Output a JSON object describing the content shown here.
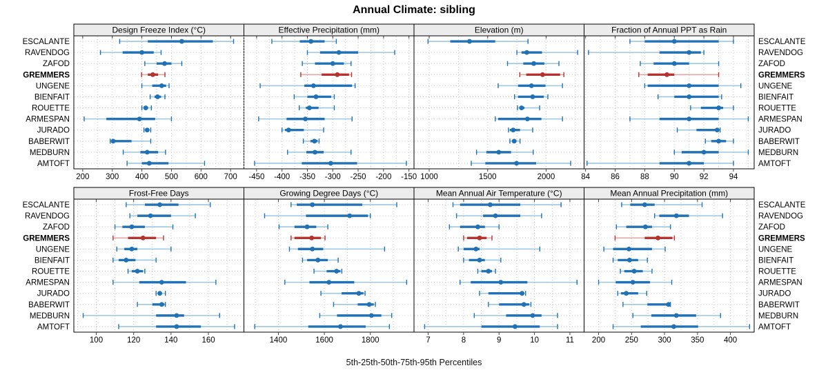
{
  "title": "Annual Climate: sibling",
  "caption": "5th-25th-50th-75th-95th Percentiles",
  "colors": {
    "blue_dark": "#2171B5",
    "blue_light": "#9CC7E2",
    "red_dark": "#B5332E",
    "red_light": "#E3A8A2",
    "grid": "#C9C9C9",
    "strip_bg": "#ECECEC",
    "panel_border": "#000000",
    "text": "#000000"
  },
  "chart_data": {
    "type": "scatter",
    "subtype": "percentile-interval-dotplot (lattice, 2x4 panels)",
    "percentile_levels": [
      5,
      25,
      50,
      75,
      95
    ],
    "legend_position": "none",
    "grid": "dotted",
    "sites": [
      "ESCALANTE",
      "RAVENDOG",
      "ZAFOD",
      "GREMMERS",
      "UNGENE",
      "BIENFAIT",
      "ROUETTE",
      "ARMESPAN",
      "JURADO",
      "BABERWIT",
      "MEDBURN",
      "AMTOFT"
    ],
    "highlighted_site": "GREMMERS",
    "layout": {
      "rows": 2,
      "cols": 4
    },
    "panels": [
      {
        "title": "Design Freeze Index (°C)",
        "xlim": [
          170,
          745
        ],
        "ticks": [
          200,
          300,
          400,
          500,
          600,
          700
        ],
        "minor_step": 50,
        "values": [
          [
            325,
            420,
            535,
            640,
            710
          ],
          [
            260,
            335,
            400,
            440,
            465
          ],
          [
            410,
            450,
            477,
            500,
            535
          ],
          [
            399,
            420,
            437,
            455,
            478
          ],
          [
            400,
            435,
            467,
            482,
            492
          ],
          [
            428,
            443,
            453,
            465,
            478
          ],
          [
            400,
            407,
            413,
            421,
            432
          ],
          [
            205,
            280,
            392,
            445,
            500
          ],
          [
            407,
            412,
            418,
            424,
            430
          ],
          [
            293,
            298,
            303,
            365,
            430
          ],
          [
            337,
            395,
            418,
            455,
            480
          ],
          [
            350,
            400,
            425,
            490,
            612
          ]
        ]
      },
      {
        "title": "Effective Precipitation (mm)",
        "xlim": [
          -475,
          -140
        ],
        "ticks": [
          -450,
          -400,
          -350,
          -300,
          -250,
          -200,
          -150
        ],
        "minor_step": 25,
        "values": [
          [
            -420,
            -365,
            -343,
            -316,
            -293
          ],
          [
            -350,
            -325,
            -288,
            -250,
            -178
          ],
          [
            -360,
            -335,
            -300,
            -278,
            -264
          ],
          [
            -363,
            -322,
            -291,
            -268,
            -263
          ],
          [
            -443,
            -356,
            -338,
            -262,
            -256
          ],
          [
            -376,
            -350,
            -333,
            -303,
            -297
          ],
          [
            -366,
            -353,
            -346,
            -328,
            -297
          ],
          [
            -446,
            -391,
            -354,
            -316,
            -262
          ],
          [
            -400,
            -394,
            -387,
            -357,
            -318
          ],
          [
            -358,
            -344,
            -336,
            -330,
            -327
          ],
          [
            -389,
            -352,
            -335,
            -318,
            -264
          ],
          [
            -454,
            -361,
            -304,
            -252,
            -155
          ]
        ]
      },
      {
        "title": "Elevation (m)",
        "xlim": [
          870,
          2325
        ],
        "ticks": [
          1000,
          1500,
          2000
        ],
        "minor_step": 250,
        "values": [
          [
            990,
            1180,
            1345,
            1565,
            1845
          ],
          [
            1750,
            1790,
            1835,
            1965,
            2270
          ],
          [
            1670,
            1805,
            1895,
            1985,
            2110
          ],
          [
            1775,
            1830,
            1970,
            2120,
            2152
          ],
          [
            1590,
            1760,
            1875,
            1995,
            2140
          ],
          [
            1730,
            1760,
            1885,
            1980,
            2015
          ],
          [
            1755,
            1770,
            1790,
            1815,
            1945
          ],
          [
            1565,
            1590,
            1840,
            1960,
            2140
          ],
          [
            1678,
            1690,
            1718,
            1777,
            1885
          ],
          [
            1690,
            1708,
            1727,
            1747,
            1777
          ],
          [
            1405,
            1490,
            1595,
            1700,
            1890
          ],
          [
            1360,
            1480,
            1747,
            1915,
            2210
          ]
        ]
      },
      {
        "title": "Fraction of Annual PPT as Rain",
        "xlim": [
          83.9,
          95.4
        ],
        "ticks": [
          84,
          86,
          88,
          90,
          92,
          94
        ],
        "minor_step": 1,
        "values": [
          [
            87,
            88,
            90,
            93,
            94
          ],
          [
            84.2,
            89,
            91,
            91.8,
            92
          ],
          [
            87.7,
            88.6,
            90,
            91,
            93
          ],
          [
            87.6,
            88.2,
            89.5,
            90,
            93
          ],
          [
            88,
            88.2,
            91,
            93,
            94.5
          ],
          [
            88.9,
            90,
            91,
            93,
            93.2
          ],
          [
            91.1,
            91.8,
            93,
            93.3,
            94
          ],
          [
            87,
            89,
            91,
            93,
            95
          ],
          [
            90.2,
            91.5,
            92.9,
            93,
            93.1
          ],
          [
            92.1,
            92.5,
            93,
            93.5,
            94
          ],
          [
            90,
            90.5,
            92,
            93,
            95
          ],
          [
            84.1,
            89,
            91,
            92,
            94
          ]
        ]
      },
      {
        "title": "Frost-Free Days",
        "xlim": [
          88,
          179
        ],
        "ticks": [
          100,
          120,
          140,
          160
        ],
        "minor_step": 10,
        "values": [
          [
            116,
            126,
            134,
            144,
            161
          ],
          [
            118,
            122,
            129,
            140,
            153
          ],
          [
            110,
            114,
            119,
            126,
            141
          ],
          [
            109,
            117,
            125,
            132,
            136
          ],
          [
            111,
            115,
            119,
            122,
            140
          ],
          [
            109,
            112,
            116,
            121,
            132
          ],
          [
            117,
            119,
            122,
            125,
            126
          ],
          [
            109,
            123,
            135,
            148,
            164
          ],
          [
            132,
            133,
            134,
            135,
            137
          ],
          [
            122,
            130,
            135,
            136.5,
            137
          ],
          [
            93,
            132,
            143,
            147,
            166
          ],
          [
            112,
            132,
            143,
            156,
            174
          ]
        ]
      },
      {
        "title": "Growing Degree Days (°C)",
        "xlim": [
          1250,
          1990
        ],
        "ticks": [
          1400,
          1600,
          1800
        ],
        "minor_step": 100,
        "values": [
          [
            1455,
            1480,
            1548,
            1765,
            1915
          ],
          [
            1340,
            1520,
            1710,
            1790,
            1800
          ],
          [
            1403,
            1470,
            1525,
            1565,
            1615
          ],
          [
            1455,
            1470,
            1545,
            1585,
            1603
          ],
          [
            1448,
            1485,
            1548,
            1595,
            1862
          ],
          [
            1505,
            1525,
            1572,
            1615,
            1660
          ],
          [
            1555,
            1610,
            1653,
            1670,
            1676
          ],
          [
            1428,
            1535,
            1620,
            1730,
            1958
          ],
          [
            1585,
            1675,
            1750,
            1770,
            1777
          ],
          [
            1640,
            1745,
            1795,
            1815,
            1822
          ],
          [
            1580,
            1655,
            1805,
            1848,
            1893
          ],
          [
            1297,
            1530,
            1670,
            1780,
            1883
          ]
        ]
      },
      {
        "title": "Mean Annual Air Temperature (°C)",
        "xlim": [
          6.6,
          11.4
        ],
        "ticks": [
          7,
          8,
          9,
          10,
          11
        ],
        "minor_step": 0.5,
        "values": [
          [
            7.7,
            7.9,
            8.75,
            9.6,
            10.75
          ],
          [
            7.8,
            8.55,
            8.9,
            9.6,
            10.2
          ],
          [
            7.6,
            7.9,
            8.4,
            8.6,
            9.0
          ],
          [
            8.0,
            8.1,
            8.45,
            8.65,
            8.8
          ],
          [
            7.85,
            8.0,
            8.35,
            8.45,
            10.15
          ],
          [
            8.0,
            8.15,
            8.45,
            8.6,
            9.05
          ],
          [
            8.4,
            8.5,
            8.7,
            8.8,
            8.9
          ],
          [
            7.9,
            8.2,
            9.05,
            9.8,
            11.2
          ],
          [
            8.45,
            8.7,
            9.65,
            9.7,
            9.75
          ],
          [
            8.7,
            9.0,
            9.7,
            9.85,
            9.9
          ],
          [
            8.3,
            9.2,
            9.95,
            10.2,
            10.65
          ],
          [
            6.9,
            8.5,
            9.45,
            10.15,
            10.65
          ]
        ]
      },
      {
        "title": "Mean Annual Precipitation (mm)",
        "xlim": [
          178,
          436
        ],
        "ticks": [
          200,
          250,
          300,
          350,
          400
        ],
        "minor_step": 25,
        "values": [
          [
            235,
            248,
            270,
            285,
            357
          ],
          [
            285,
            292,
            318,
            337,
            388
          ],
          [
            227,
            242,
            271,
            281,
            309
          ],
          [
            225,
            270,
            290,
            312,
            315
          ],
          [
            208,
            222,
            246,
            281,
            301
          ],
          [
            222,
            229,
            247,
            260,
            274
          ],
          [
            233,
            239,
            254,
            267,
            281
          ],
          [
            200,
            226,
            252,
            278,
            311
          ],
          [
            229,
            234,
            242,
            260,
            273
          ],
          [
            237,
            274,
            306,
            308,
            309
          ],
          [
            252,
            280,
            318,
            348,
            385
          ],
          [
            222,
            264,
            314,
            351,
            429
          ]
        ]
      }
    ]
  }
}
